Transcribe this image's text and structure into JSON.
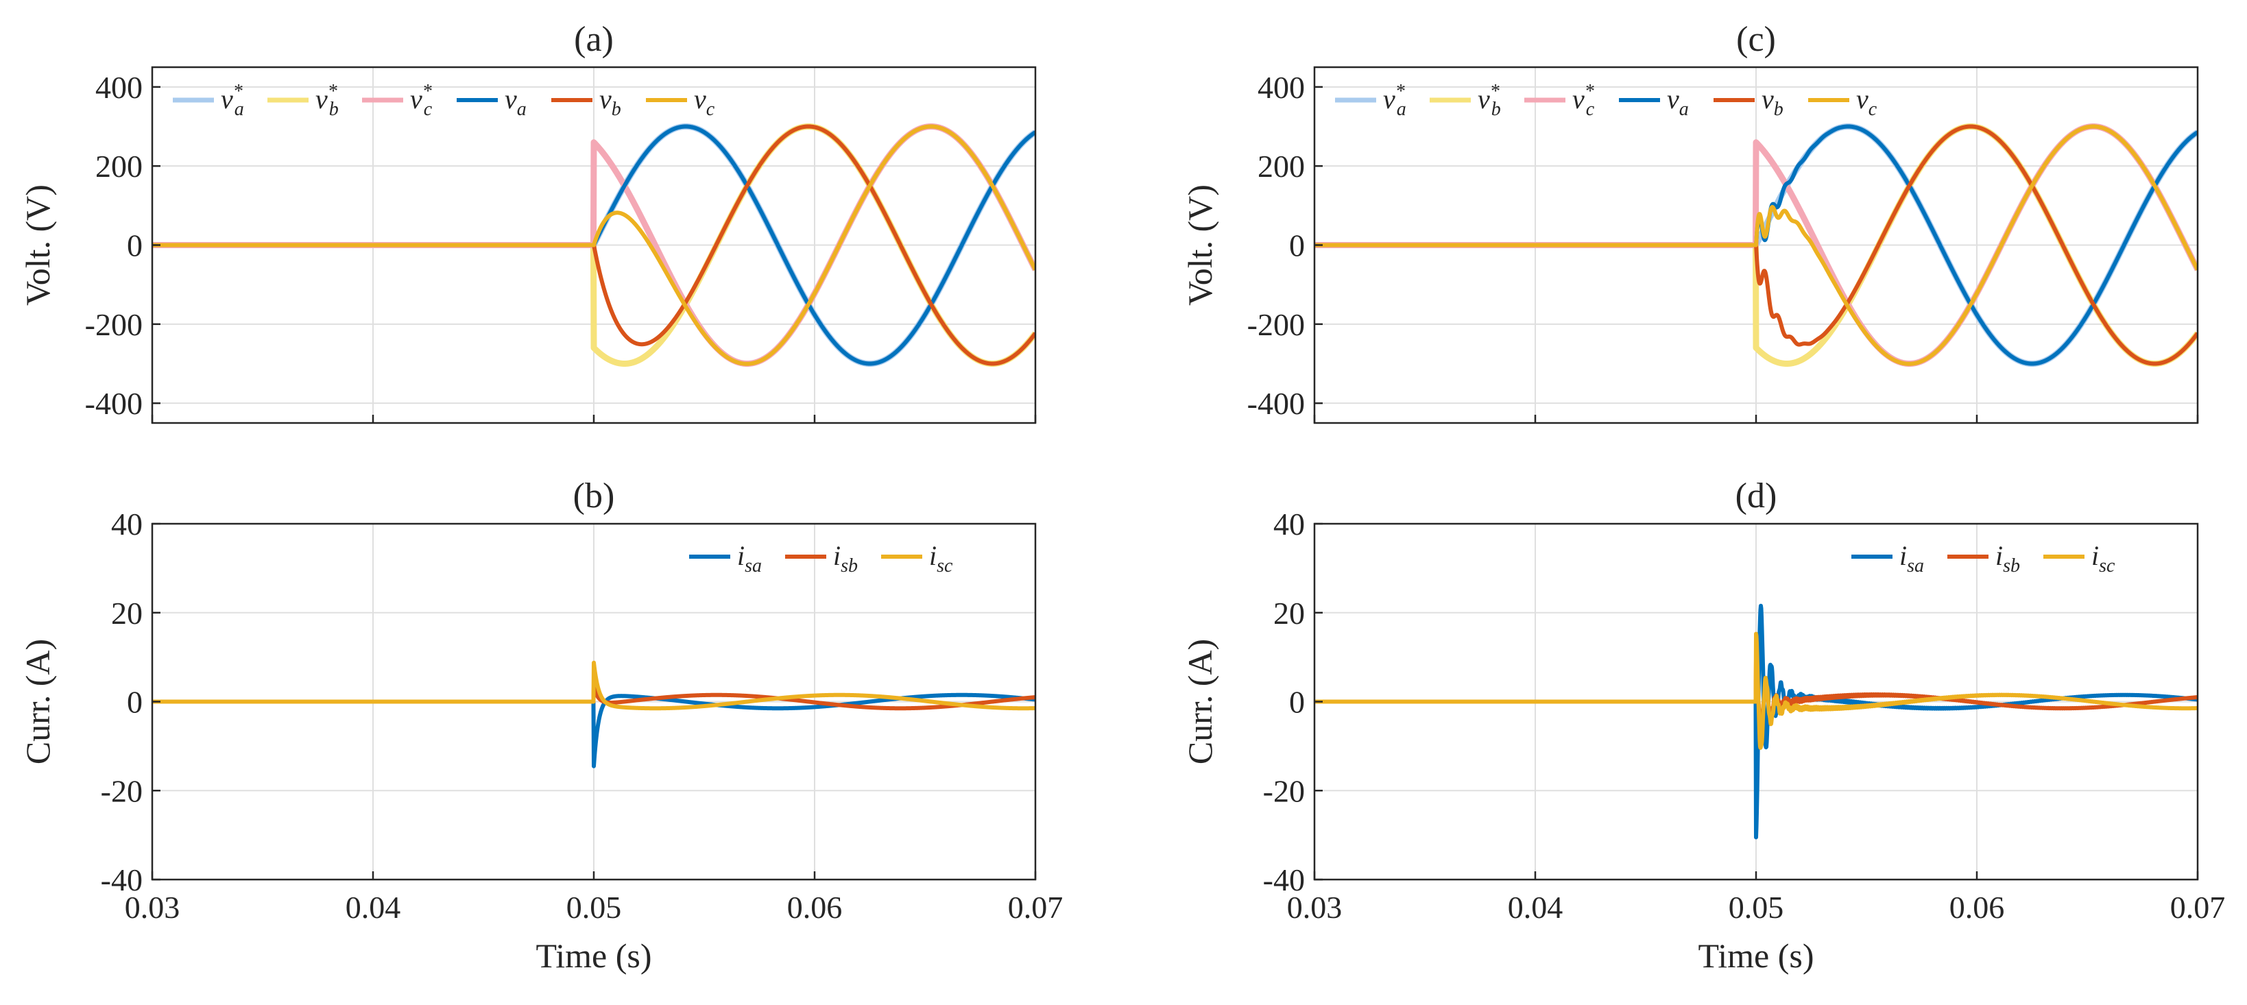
{
  "colors": {
    "blue": "#0072BD",
    "red": "#D95319",
    "yellow": "#EDB120",
    "ref_a": "#A9CBEE",
    "ref_b": "#F6E27A",
    "ref_c": "#F4A8B5",
    "grid": "#DFDFDF",
    "axis": "#262626"
  },
  "chart_data": [
    {
      "id": "a",
      "type": "line",
      "title": "(a)",
      "xlabel": "",
      "ylabel": "Volt. (V)",
      "xlim": [
        0.03,
        0.07
      ],
      "ylim": [
        -450,
        450
      ],
      "xticks": [
        0.03,
        0.04,
        0.05,
        0.06,
        0.07
      ],
      "xtick_labels": [],
      "yticks": [
        -400,
        -200,
        0,
        200,
        400
      ],
      "ytick_labels": [
        "-400",
        "-200",
        "0",
        "200",
        "400"
      ],
      "grid": true,
      "legend_position": "top-left",
      "step_time": 0.05,
      "frequency_hz": 60,
      "amplitude": 300,
      "series": [
        {
          "name": "v*a",
          "base": "v",
          "sub": "a",
          "star": true,
          "phase_deg": -90,
          "color": "ref_a",
          "kind": "reference"
        },
        {
          "name": "v*b",
          "base": "v",
          "sub": "b",
          "star": true,
          "phase_deg": 150,
          "color": "ref_b",
          "kind": "reference"
        },
        {
          "name": "v*c",
          "base": "v",
          "sub": "c",
          "star": true,
          "phase_deg": 30,
          "color": "ref_c",
          "kind": "reference"
        },
        {
          "name": "va",
          "base": "v",
          "sub": "a",
          "star": false,
          "phase_deg": -90,
          "color": "blue",
          "kind": "voltage"
        },
        {
          "name": "vb",
          "base": "v",
          "sub": "b",
          "star": false,
          "phase_deg": 150,
          "color": "red",
          "kind": "voltage"
        },
        {
          "name": "vc",
          "base": "v",
          "sub": "c",
          "star": false,
          "phase_deg": 30,
          "color": "yellow",
          "kind": "voltage"
        }
      ]
    },
    {
      "id": "b",
      "type": "line",
      "title": "(b)",
      "xlabel": "Time (s)",
      "ylabel": "Curr. (A)",
      "xlim": [
        0.03,
        0.07
      ],
      "ylim": [
        -40,
        40
      ],
      "xticks": [
        0.03,
        0.04,
        0.05,
        0.06,
        0.07
      ],
      "xtick_labels": [
        "0.03",
        "0.04",
        "0.05",
        "0.06",
        "0.07"
      ],
      "yticks": [
        -40,
        -20,
        0,
        20,
        40
      ],
      "ytick_labels": [
        "-40",
        "-20",
        "0",
        "20",
        "40"
      ],
      "grid": true,
      "legend_position": "top-right",
      "step_time": 0.05,
      "frequency_hz": 60,
      "steady_amplitude": 1.5,
      "transient_peaks": {
        "isa": -16,
        "isb": 4,
        "isc": 9.5
      },
      "series": [
        {
          "name": "isa",
          "base": "i",
          "sub": "sa",
          "star": false,
          "phase_deg": 0,
          "color": "blue",
          "kind": "current"
        },
        {
          "name": "isb",
          "base": "i",
          "sub": "sb",
          "star": false,
          "phase_deg": -120,
          "color": "red",
          "kind": "current"
        },
        {
          "name": "isc",
          "base": "i",
          "sub": "sc",
          "star": false,
          "phase_deg": 120,
          "color": "yellow",
          "kind": "current"
        }
      ]
    },
    {
      "id": "c",
      "type": "line",
      "title": "(c)",
      "xlabel": "",
      "ylabel": "Volt. (V)",
      "xlim": [
        0.03,
        0.07
      ],
      "ylim": [
        -450,
        450
      ],
      "xticks": [
        0.03,
        0.04,
        0.05,
        0.06,
        0.07
      ],
      "xtick_labels": [],
      "yticks": [
        -400,
        -200,
        0,
        200,
        400
      ],
      "ytick_labels": [
        "-400",
        "-200",
        "0",
        "200",
        "400"
      ],
      "grid": true,
      "legend_position": "top-left",
      "step_time": 0.05,
      "frequency_hz": 60,
      "amplitude": 300,
      "series": [
        {
          "name": "v*a",
          "base": "v",
          "sub": "a",
          "star": true,
          "phase_deg": -90,
          "color": "ref_a",
          "kind": "reference"
        },
        {
          "name": "v*b",
          "base": "v",
          "sub": "b",
          "star": true,
          "phase_deg": 150,
          "color": "ref_b",
          "kind": "reference"
        },
        {
          "name": "v*c",
          "base": "v",
          "sub": "c",
          "star": true,
          "phase_deg": 30,
          "color": "ref_c",
          "kind": "reference"
        },
        {
          "name": "va",
          "base": "v",
          "sub": "a",
          "star": false,
          "phase_deg": -90,
          "color": "blue",
          "kind": "voltage"
        },
        {
          "name": "vb",
          "base": "v",
          "sub": "b",
          "star": false,
          "phase_deg": 150,
          "color": "red",
          "kind": "voltage"
        },
        {
          "name": "vc",
          "base": "v",
          "sub": "c",
          "star": false,
          "phase_deg": 30,
          "color": "yellow",
          "kind": "voltage"
        }
      ]
    },
    {
      "id": "d",
      "type": "line",
      "title": "(d)",
      "xlabel": "Time (s)",
      "ylabel": "Curr. (A)",
      "xlim": [
        0.03,
        0.07
      ],
      "ylim": [
        -40,
        40
      ],
      "xticks": [
        0.03,
        0.04,
        0.05,
        0.06,
        0.07
      ],
      "xtick_labels": [
        "0.03",
        "0.04",
        "0.05",
        "0.06",
        "0.07"
      ],
      "yticks": [
        -40,
        -20,
        0,
        20,
        40
      ],
      "ytick_labels": [
        "-40",
        "-20",
        "0",
        "20",
        "40"
      ],
      "grid": true,
      "legend_position": "top-right",
      "step_time": 0.05,
      "frequency_hz": 60,
      "steady_amplitude": 1.5,
      "transient_peaks": {
        "isa": -32,
        "isb": 10,
        "isc": 16
      },
      "series": [
        {
          "name": "isa",
          "base": "i",
          "sub": "sa",
          "star": false,
          "phase_deg": 0,
          "color": "blue",
          "kind": "current"
        },
        {
          "name": "isb",
          "base": "i",
          "sub": "sb",
          "star": false,
          "phase_deg": -120,
          "color": "red",
          "kind": "current"
        },
        {
          "name": "isc",
          "base": "i",
          "sub": "sc",
          "star": false,
          "phase_deg": 120,
          "color": "yellow",
          "kind": "current"
        }
      ]
    }
  ]
}
